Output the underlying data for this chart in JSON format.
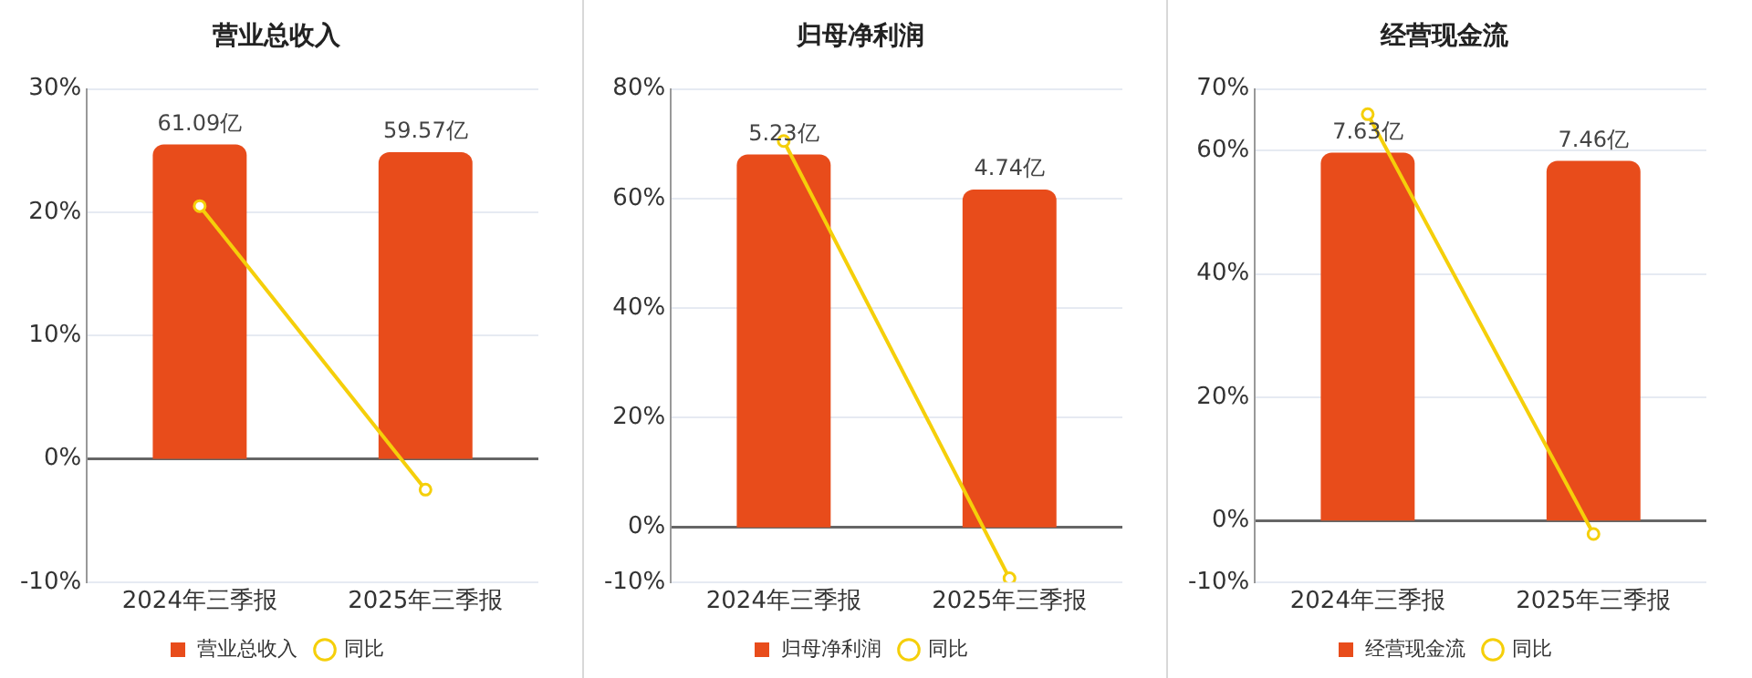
{
  "chart_data": [
    {
      "type": "bar",
      "title": "营业总收入",
      "categories": [
        "2024年三季报",
        "2025年三季报"
      ],
      "series": [
        {
          "name": "营业总收入",
          "axis": "y2",
          "color": "#e84c1b",
          "values": [
            61.09,
            59.57
          ],
          "value_labels": [
            "61.09亿",
            "59.57亿"
          ]
        },
        {
          "name": "同比",
          "type": "line",
          "color": "#f5cf0a",
          "values": [
            20.5,
            -2.5
          ]
        }
      ],
      "ylim": [
        -10,
        30
      ],
      "yticks": [
        {
          "value": -10,
          "label": "-10%"
        },
        {
          "value": 0,
          "label": "0%"
        },
        {
          "value": 10,
          "label": "10%"
        },
        {
          "value": 20,
          "label": "20%"
        },
        {
          "value": 30,
          "label": "30%"
        }
      ],
      "y2lim": [
        -23.96,
        71.87
      ],
      "grid": "y",
      "legend": "bottom",
      "marker": "circle"
    },
    {
      "type": "bar",
      "title": "归母净利润",
      "categories": [
        "2024年三季报",
        "2025年三季报"
      ],
      "series": [
        {
          "name": "归母净利润",
          "axis": "y2",
          "color": "#e84c1b",
          "values": [
            5.23,
            4.74
          ],
          "value_labels": [
            "5.23亿",
            "4.74亿"
          ]
        },
        {
          "name": "同比",
          "type": "line",
          "color": "#f5cf0a",
          "values": [
            70.5,
            -9.3
          ]
        }
      ],
      "ylim": [
        -10,
        80
      ],
      "yticks": [
        {
          "value": -10,
          "label": "-10%"
        },
        {
          "value": 0,
          "label": "0%"
        },
        {
          "value": 20,
          "label": "20%"
        },
        {
          "value": 40,
          "label": "40%"
        },
        {
          "value": 60,
          "label": "60%"
        },
        {
          "value": 80,
          "label": "80%"
        }
      ],
      "y2lim": [
        -0.769,
        6.15
      ],
      "grid": "y",
      "legend": "bottom",
      "marker": "circle"
    },
    {
      "type": "bar",
      "title": "经营现金流",
      "categories": [
        "2024年三季报",
        "2025年三季报"
      ],
      "series": [
        {
          "name": "经营现金流",
          "axis": "y2",
          "color": "#e84c1b",
          "values": [
            7.63,
            7.46
          ],
          "value_labels": [
            "7.63亿",
            "7.46亿"
          ]
        },
        {
          "name": "同比",
          "type": "line",
          "color": "#f5cf0a",
          "values": [
            65.9,
            -2.2
          ]
        }
      ],
      "ylim": [
        -10,
        70
      ],
      "yticks": [
        {
          "value": -10,
          "label": "-10%"
        },
        {
          "value": 0,
          "label": "0%"
        },
        {
          "value": 20,
          "label": "20%"
        },
        {
          "value": 40,
          "label": "40%"
        },
        {
          "value": 60,
          "label": "60%"
        },
        {
          "value": 70,
          "label": "70%"
        }
      ],
      "y2lim": [
        -1.279,
        8.95
      ],
      "grid": "y",
      "legend": "bottom",
      "marker": "circle"
    }
  ]
}
